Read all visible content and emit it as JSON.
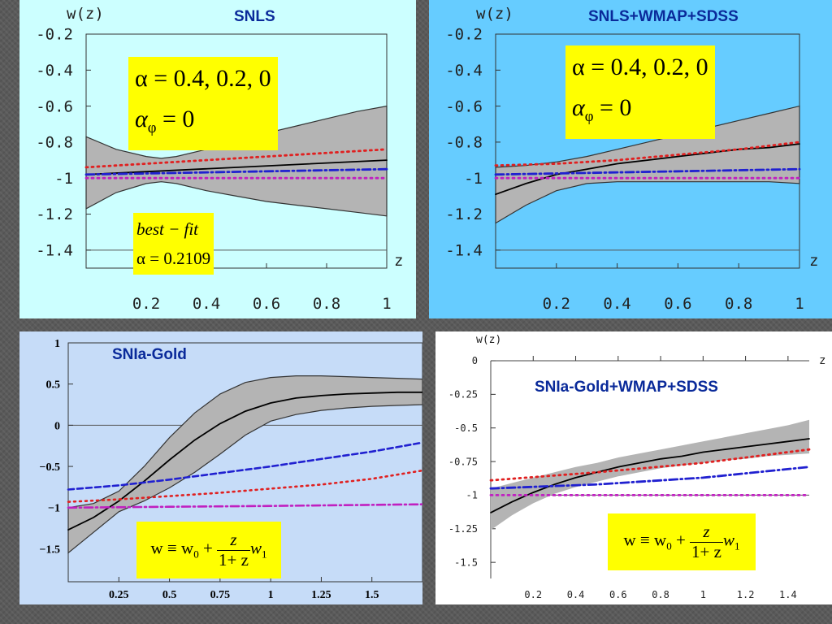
{
  "chart_data": [
    {
      "type": "line",
      "title": "SNLS",
      "ylabel": "w(z)",
      "xlabel": "z",
      "xlim": [
        0,
        1
      ],
      "ylim": [
        -1.5,
        -0.2
      ],
      "xticks": [
        "0.2",
        "0.4",
        "0.6",
        "0.8",
        "1"
      ],
      "yticks": [
        "-0.2",
        "-0.4",
        "-0.6",
        "-0.8",
        "-1",
        "-1.2",
        "-1.4"
      ],
      "annotations": [
        "α = 0.4, 0.2, 0",
        "αφ = 0",
        "best − fit",
        "α = 0.2109"
      ],
      "band": {
        "x": [
          0,
          0.1,
          0.2,
          0.25,
          0.3,
          0.4,
          0.5,
          0.6,
          0.7,
          0.8,
          0.9,
          1.0
        ],
        "upper": [
          -0.77,
          -0.84,
          -0.88,
          -0.89,
          -0.88,
          -0.84,
          -0.79,
          -0.75,
          -0.71,
          -0.67,
          -0.63,
          -0.6
        ],
        "lower": [
          -1.17,
          -1.08,
          -1.03,
          -1.02,
          -1.03,
          -1.07,
          -1.1,
          -1.13,
          -1.15,
          -1.17,
          -1.19,
          -1.21
        ]
      },
      "series": [
        {
          "values_x": [
            0,
            1
          ],
          "values": [
            -0.98,
            -0.9
          ],
          "color": "#000000",
          "style": "solid"
        },
        {
          "values_x": [
            0,
            1
          ],
          "values": [
            -0.94,
            -0.84
          ],
          "color": "#e02020",
          "style": "dotted"
        },
        {
          "values_x": [
            0,
            1
          ],
          "values": [
            -0.98,
            -0.95
          ],
          "color": "#2020d0",
          "style": "dashdot"
        },
        {
          "values_x": [
            0,
            1
          ],
          "values": [
            -1.0,
            -1.0
          ],
          "color": "#c020c0",
          "style": "dotted"
        }
      ]
    },
    {
      "type": "line",
      "title": "SNLS+WMAP+SDSS",
      "ylabel": "w(z)",
      "xlabel": "z",
      "xlim": [
        0,
        1
      ],
      "ylim": [
        -1.5,
        -0.2
      ],
      "xticks": [
        "0.2",
        "0.4",
        "0.6",
        "0.8",
        "1"
      ],
      "yticks": [
        "-0.2",
        "-0.4",
        "-0.6",
        "-0.8",
        "-1",
        "-1.2",
        "-1.4"
      ],
      "annotations": [
        "α = 0.4, 0.2, 0",
        "αφ = 0"
      ],
      "band": {
        "x": [
          0,
          0.1,
          0.2,
          0.3,
          0.4,
          0.5,
          0.6,
          0.7,
          0.8,
          0.9,
          1.0
        ],
        "upper": [
          -0.94,
          -0.93,
          -0.91,
          -0.88,
          -0.84,
          -0.8,
          -0.76,
          -0.72,
          -0.68,
          -0.64,
          -0.6
        ],
        "lower": [
          -1.25,
          -1.15,
          -1.07,
          -1.03,
          -1.02,
          -1.02,
          -1.02,
          -1.02,
          -1.02,
          -1.02,
          -1.03
        ]
      },
      "series": [
        {
          "values_x": [
            0,
            0.1,
            0.2,
            0.3,
            0.4,
            0.5,
            0.6,
            0.7,
            0.8,
            0.9,
            1.0
          ],
          "values": [
            -1.09,
            -1.03,
            -0.98,
            -0.95,
            -0.92,
            -0.9,
            -0.88,
            -0.86,
            -0.84,
            -0.83,
            -0.81
          ],
          "color": "#000000",
          "style": "solid"
        },
        {
          "values_x": [
            0,
            0.2,
            0.4,
            0.6,
            0.8,
            1.0
          ],
          "values": [
            -0.93,
            -0.92,
            -0.9,
            -0.87,
            -0.84,
            -0.8
          ],
          "color": "#e02020",
          "style": "dotted"
        },
        {
          "values_x": [
            0,
            1
          ],
          "values": [
            -0.98,
            -0.95
          ],
          "color": "#2020d0",
          "style": "dashdot"
        },
        {
          "values_x": [
            0,
            1
          ],
          "values": [
            -1.0,
            -1.0
          ],
          "color": "#c020c0",
          "style": "dotted"
        }
      ]
    },
    {
      "type": "line",
      "title": "SNIa-Gold",
      "ylabel": "",
      "xlabel": "",
      "xlim": [
        0,
        1.75
      ],
      "ylim": [
        -1.9,
        1.0
      ],
      "xticks": [
        "0.25",
        "0.5",
        "0.75",
        "1",
        "1.25",
        "1.5"
      ],
      "yticks": [
        "1",
        "0.5",
        "0",
        "−0.5",
        "−1",
        "−1.5"
      ],
      "band": {
        "x": [
          0,
          0.125,
          0.25,
          0.375,
          0.5,
          0.625,
          0.75,
          0.875,
          1.0,
          1.125,
          1.25,
          1.375,
          1.5,
          1.625,
          1.75
        ],
        "upper": [
          -1.0,
          -0.95,
          -0.8,
          -0.5,
          -0.15,
          0.15,
          0.38,
          0.52,
          0.58,
          0.6,
          0.6,
          0.59,
          0.58,
          0.57,
          0.56
        ],
        "lower": [
          -1.55,
          -1.3,
          -1.05,
          -0.92,
          -0.76,
          -0.57,
          -0.35,
          -0.12,
          0.05,
          0.13,
          0.18,
          0.21,
          0.23,
          0.24,
          0.25
        ]
      },
      "series": [
        {
          "values_x": [
            0,
            0.125,
            0.25,
            0.375,
            0.5,
            0.625,
            0.75,
            0.875,
            1.0,
            1.125,
            1.25,
            1.375,
            1.5,
            1.625,
            1.75
          ],
          "values": [
            -1.27,
            -1.12,
            -0.92,
            -0.68,
            -0.42,
            -0.18,
            0.02,
            0.17,
            0.27,
            0.33,
            0.36,
            0.38,
            0.39,
            0.4,
            0.4
          ],
          "color": "#000000",
          "style": "solid"
        },
        {
          "values_x": [
            0,
            0.25,
            0.5,
            0.75,
            1.0,
            1.25,
            1.5,
            1.75
          ],
          "values": [
            -0.78,
            -0.73,
            -0.66,
            -0.58,
            -0.5,
            -0.41,
            -0.32,
            -0.21
          ],
          "color": "#2020d0",
          "style": "dashed"
        },
        {
          "values_x": [
            0,
            0.25,
            0.5,
            0.75,
            1.0,
            1.25,
            1.5,
            1.75
          ],
          "values": [
            -0.93,
            -0.9,
            -0.86,
            -0.82,
            -0.77,
            -0.72,
            -0.65,
            -0.55
          ],
          "color": "#e02020",
          "style": "dotted"
        },
        {
          "values_x": [
            0,
            0.5,
            1.0,
            1.75
          ],
          "values": [
            -1.0,
            -0.99,
            -0.98,
            -0.96
          ],
          "color": "#c020c0",
          "style": "dashdot"
        }
      ]
    },
    {
      "type": "line",
      "title": "SNIa-Gold+WMAP+SDSS",
      "ylabel": "w(z)",
      "xlabel": "z",
      "xlim": [
        0,
        1.5
      ],
      "ylim": [
        -1.62,
        0
      ],
      "xticks": [
        "0.2",
        "0.4",
        "0.6",
        "0.8",
        "1",
        "1.2",
        "1.4"
      ],
      "yticks": [
        "0",
        "-0.25",
        "-0.5",
        "-0.75",
        "-1",
        "-1.25",
        "-1.5"
      ],
      "band": {
        "x": [
          0,
          0.1,
          0.2,
          0.3,
          0.4,
          0.5,
          0.6,
          0.7,
          0.8,
          0.9,
          1.0,
          1.1,
          1.2,
          1.3,
          1.4,
          1.5
        ],
        "upper": [
          -0.95,
          -0.91,
          -0.87,
          -0.83,
          -0.79,
          -0.76,
          -0.72,
          -0.69,
          -0.66,
          -0.63,
          -0.6,
          -0.57,
          -0.54,
          -0.51,
          -0.48,
          -0.44
        ],
        "lower": [
          -1.26,
          -1.15,
          -1.06,
          -0.99,
          -0.94,
          -0.9,
          -0.86,
          -0.83,
          -0.8,
          -0.78,
          -0.76,
          -0.74,
          -0.73,
          -0.71,
          -0.7,
          -0.69
        ]
      },
      "series": [
        {
          "values_x": [
            0,
            0.1,
            0.2,
            0.3,
            0.4,
            0.5,
            0.6,
            0.7,
            0.8,
            0.9,
            1.0,
            1.1,
            1.2,
            1.3,
            1.4,
            1.5
          ],
          "values": [
            -1.13,
            -1.05,
            -0.98,
            -0.92,
            -0.87,
            -0.83,
            -0.79,
            -0.76,
            -0.73,
            -0.71,
            -0.68,
            -0.66,
            -0.64,
            -0.62,
            -0.6,
            -0.58
          ],
          "color": "#000000",
          "style": "solid"
        },
        {
          "values_x": [
            0,
            0.5,
            1.0,
            1.5
          ],
          "values": [
            -0.89,
            -0.83,
            -0.76,
            -0.66
          ],
          "color": "#e02020",
          "style": "dotted"
        },
        {
          "values_x": [
            0,
            0.5,
            1.0,
            1.5
          ],
          "values": [
            -0.95,
            -0.92,
            -0.87,
            -0.79
          ],
          "color": "#2020d0",
          "style": "dashdot"
        },
        {
          "values_x": [
            0,
            1.5
          ],
          "values": [
            -1.0,
            -1.0
          ],
          "color": "#c020c0",
          "style": "dotted"
        }
      ]
    }
  ],
  "panels": [
    {
      "title": "SNLS",
      "ylabel": "w(z)",
      "xlabel": "z",
      "box_line1": "α = 0.4, 0.2, 0",
      "box_line2_base": "α",
      "box_line2_sub": "φ",
      "box_line2_rest": " = 0",
      "fit_label": "best − fit",
      "fit_value": "α = 0.2109"
    },
    {
      "title": "SNLS+WMAP+SDSS",
      "ylabel": "w(z)",
      "xlabel": "z",
      "box_line1": "α = 0.4, 0.2, 0",
      "box_line2_base": "α",
      "box_line2_sub": "φ",
      "box_line2_rest": " = 0"
    },
    {
      "title": "SNIa-Gold",
      "formula_lhs": "w ≡ w",
      "formula_sub": "0",
      "formula_plus": " + ",
      "formula_num": "z",
      "formula_den": "1+ z",
      "formula_w": "w",
      "formula_wsub": "1"
    },
    {
      "title": "SNIa-Gold+WMAP+SDSS",
      "ylabel": "w(z)",
      "xlabel": "z",
      "formula_lhs": "w ≡ w",
      "formula_sub": "0",
      "formula_plus": " + ",
      "formula_num": "z",
      "formula_den": "1+ z",
      "formula_w": "w",
      "formula_wsub": "1"
    }
  ],
  "colors": {
    "panel1_bg": "#ccffff",
    "panel2_bg": "#66ccff",
    "panel3_bg": "#c6dcf8",
    "panel4_bg": "#ffffff",
    "band": "#b4b4b4",
    "highlight": "#ffff00",
    "title": "#0a2a9a"
  }
}
